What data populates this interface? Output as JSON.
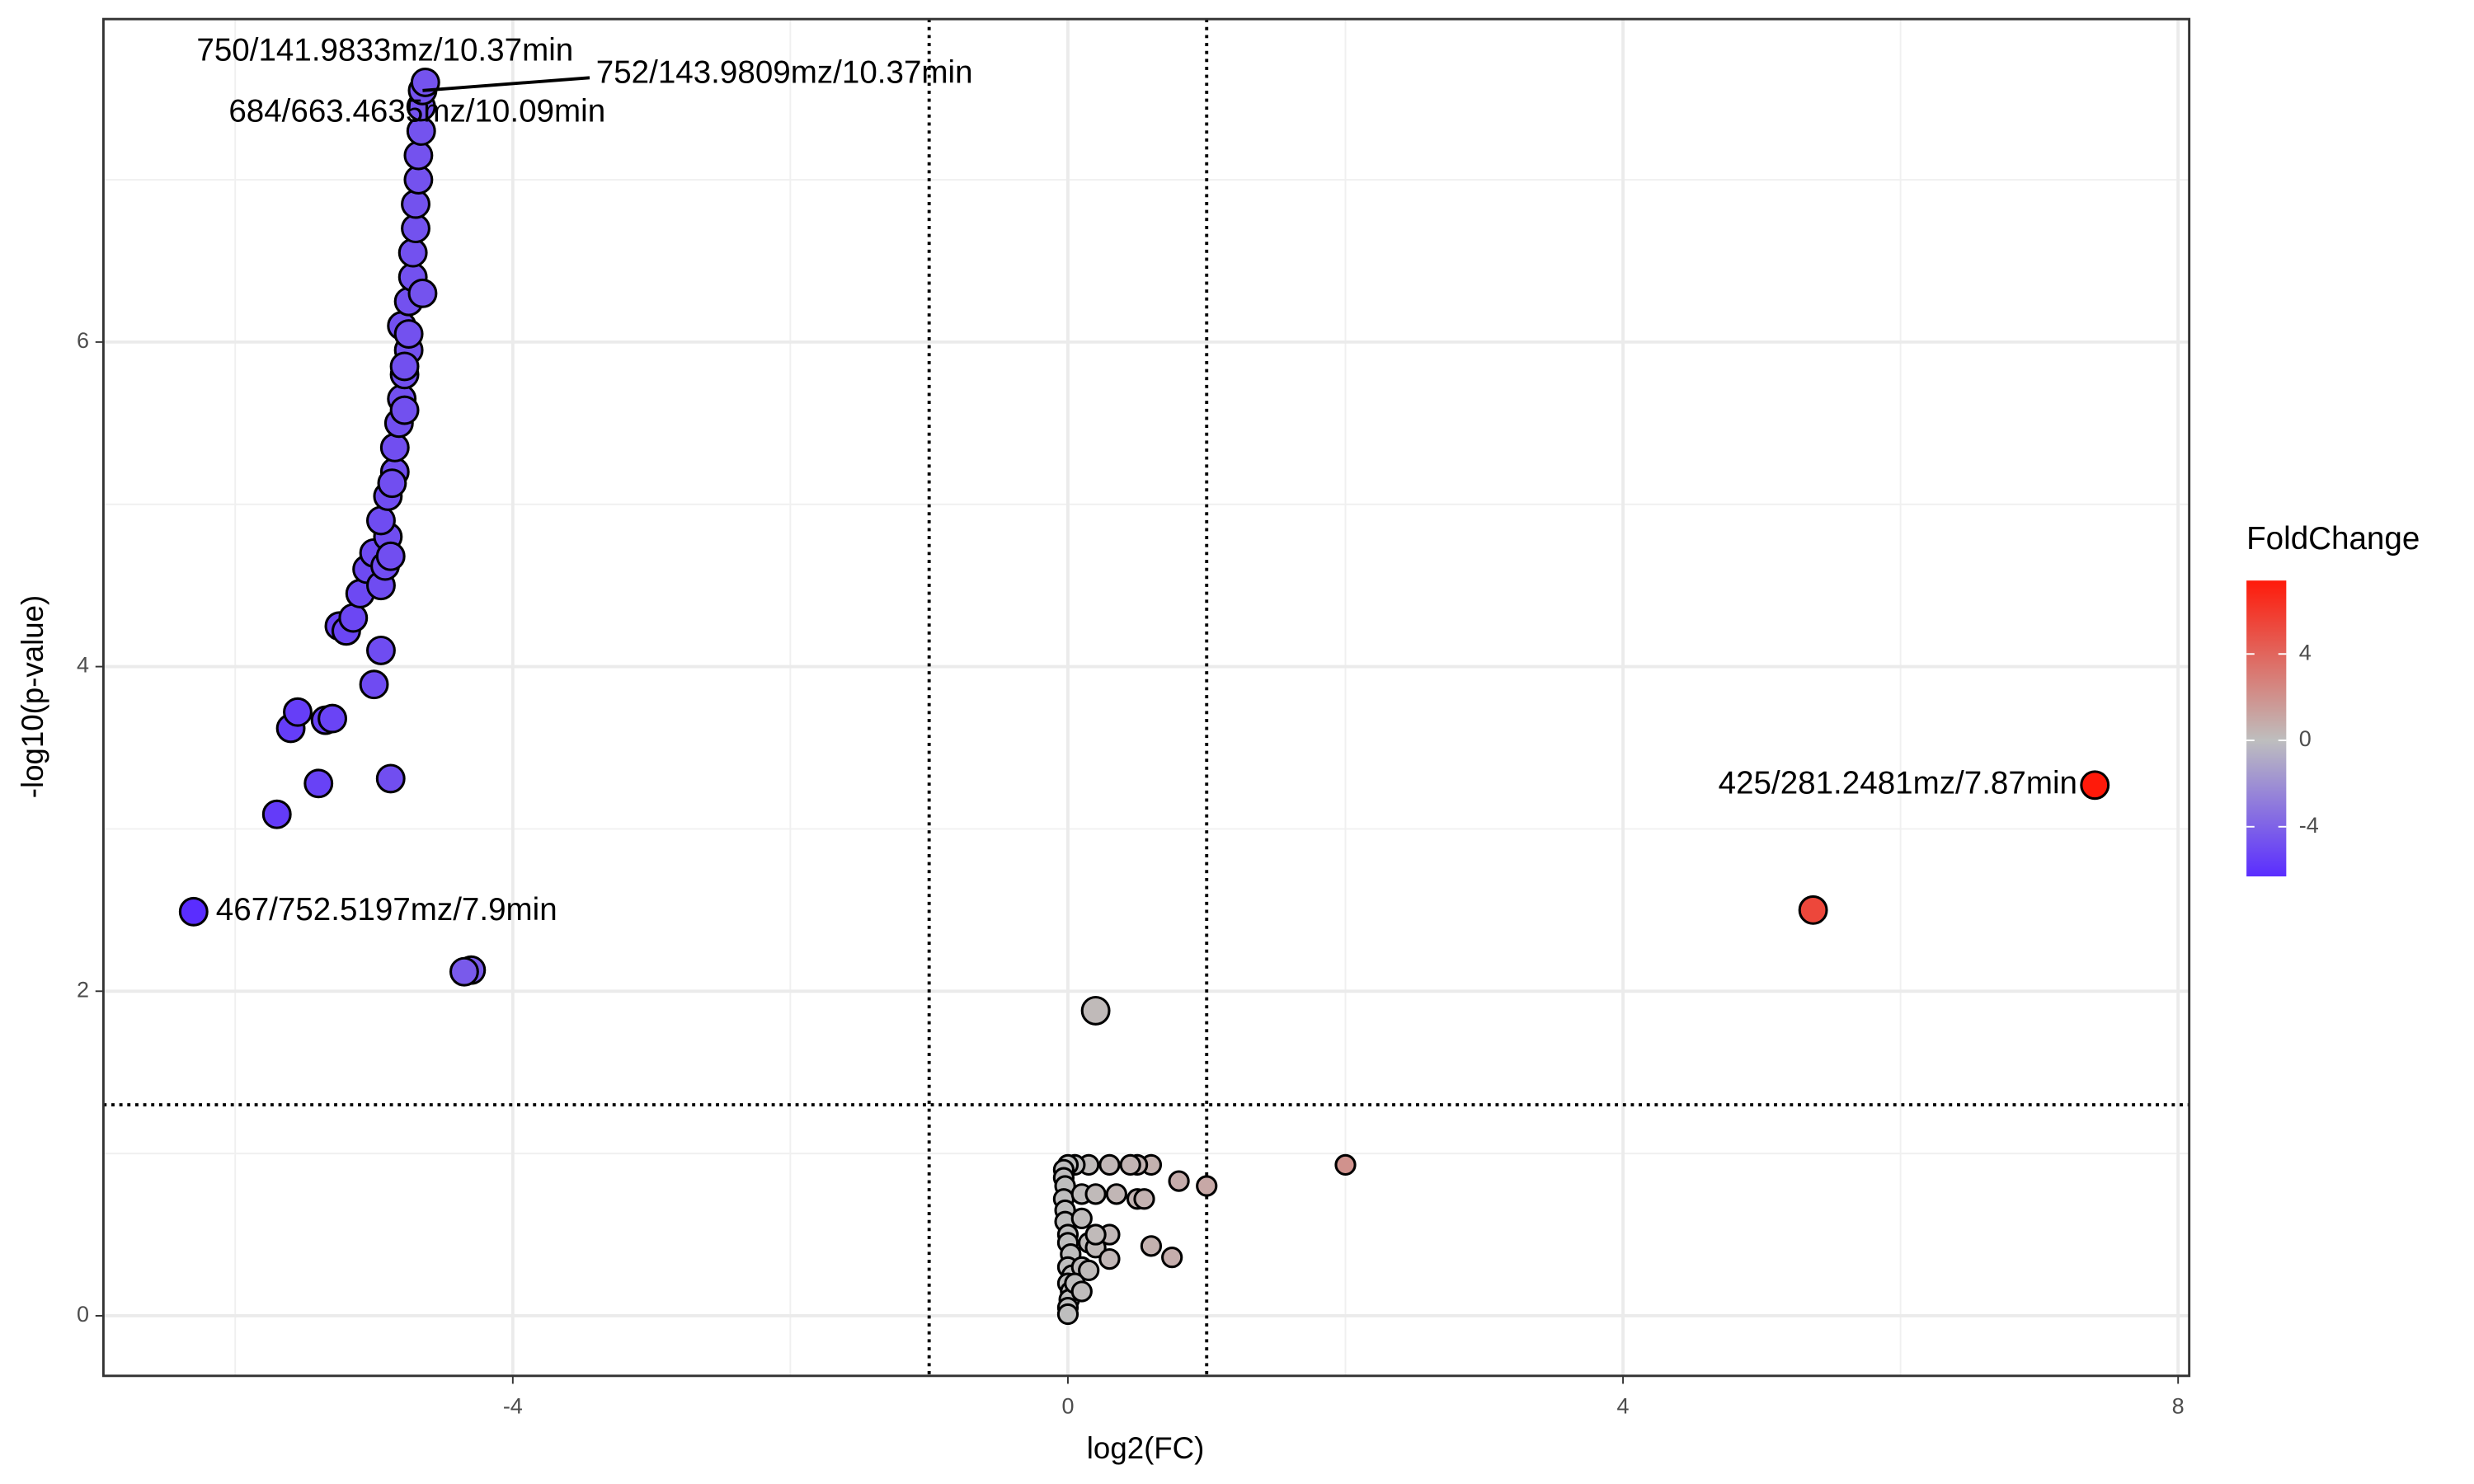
{
  "chart_data": {
    "type": "scatter",
    "x_label": "log2(FC)",
    "y_label": "-log10(p-value)",
    "xlim": [
      -6.95,
      8.08
    ],
    "ylim": [
      -0.37,
      7.99
    ],
    "xticks": [
      -4,
      0,
      4,
      8
    ],
    "yticks": [
      0,
      2,
      4,
      6
    ],
    "grid": true,
    "thresholds": {
      "x": [
        -1,
        1
      ],
      "y": 1.3
    },
    "color_scale": {
      "name": "FoldChange",
      "low": "#5a2dff",
      "mid": "#bebebe",
      "high": "#ff1a0a",
      "lim": [
        -6.3,
        7.4
      ],
      "ticks": [
        -4,
        0,
        4
      ]
    },
    "x": [
      -6.3,
      -5.7,
      -5.6,
      -5.55,
      -5.4,
      -5.35,
      -5.3,
      -5.25,
      -5.2,
      -5.15,
      -5.1,
      -5.05,
      -5.0,
      -5.0,
      -4.95,
      -4.95,
      -4.9,
      -4.92,
      -4.88,
      -4.95,
      -4.9,
      -4.85,
      -4.85,
      -4.87,
      -4.82,
      -4.8,
      -4.88,
      -4.78,
      -4.75,
      -4.8,
      -4.75,
      -4.72,
      -4.78,
      -4.78,
      -4.72,
      -4.7,
      -4.7,
      -4.68,
      -4.68,
      -4.66,
      -4.66,
      -4.65,
      -4.63,
      -4.65,
      -4.75,
      -4.3,
      -4.35,
      0.2,
      2.0,
      1.0,
      0.8,
      0.75,
      0.6,
      0.5,
      0.45,
      0.3,
      0.15,
      0.05,
      0,
      -0.03,
      -0.03,
      -0.02,
      -0.03,
      -0.02,
      -0.02,
      0,
      0,
      0.02,
      0,
      0.03,
      0,
      0.02,
      0.01,
      0,
      0,
      0.1,
      0.2,
      0.35,
      0.5,
      0.55,
      0.1,
      0.3,
      0.15,
      0.2,
      0.6,
      0.3,
      0.1,
      0.15,
      0.05,
      0.1,
      0.2,
      5.37,
      7.4
    ],
    "y": [
      2.49,
      3.09,
      3.62,
      3.72,
      3.28,
      3.67,
      3.68,
      4.25,
      4.22,
      4.3,
      4.45,
      4.6,
      3.89,
      4.7,
      4.1,
      4.5,
      4.8,
      4.62,
      4.68,
      4.9,
      5.05,
      5.2,
      5.35,
      5.13,
      5.5,
      5.65,
      3.31,
      5.8,
      5.95,
      6.1,
      6.25,
      6.4,
      5.58,
      5.85,
      6.55,
      6.7,
      6.85,
      7.0,
      7.15,
      7.3,
      7.45,
      7.55,
      7.6,
      6.3,
      6.05,
      2.13,
      2.12,
      1.88,
      0.93,
      0.8,
      0.83,
      0.36,
      0.93,
      0.93,
      0.93,
      0.93,
      0.93,
      0.93,
      0.93,
      0.9,
      0.85,
      0.8,
      0.72,
      0.65,
      0.58,
      0.5,
      0.45,
      0.38,
      0.3,
      0.25,
      0.2,
      0.15,
      0.1,
      0.05,
      0.01,
      0.75,
      0.75,
      0.75,
      0.72,
      0.72,
      0.6,
      0.5,
      0.45,
      0.42,
      0.43,
      0.35,
      0.3,
      0.28,
      0.2,
      0.15,
      0.5,
      2.5,
      3.27
    ],
    "point_labels": [
      "467/752.5197mz/7.9min",
      null,
      null,
      null,
      null,
      null,
      null,
      null,
      null,
      null,
      null,
      null,
      null,
      null,
      null,
      null,
      null,
      null,
      null,
      null,
      null,
      null,
      null,
      null,
      null,
      null,
      null,
      null,
      null,
      null,
      null,
      null,
      null,
      null,
      null,
      null,
      null,
      null,
      null,
      null,
      "684/663.4635mz/10.09min",
      "752/143.9809mz/10.37min",
      "750/141.9833mz/10.37min",
      null,
      null,
      null,
      null,
      null,
      null,
      null,
      null,
      null,
      null,
      null,
      null,
      null,
      null,
      null,
      null,
      null,
      null,
      null,
      null,
      null,
      null,
      null,
      null,
      null,
      null,
      null,
      null,
      null,
      null,
      null,
      null,
      null,
      null,
      null,
      null,
      null,
      null,
      null,
      null,
      null,
      null,
      null,
      null,
      null,
      null,
      null,
      null,
      null,
      "425/281.2481mz/7.87min"
    ]
  }
}
